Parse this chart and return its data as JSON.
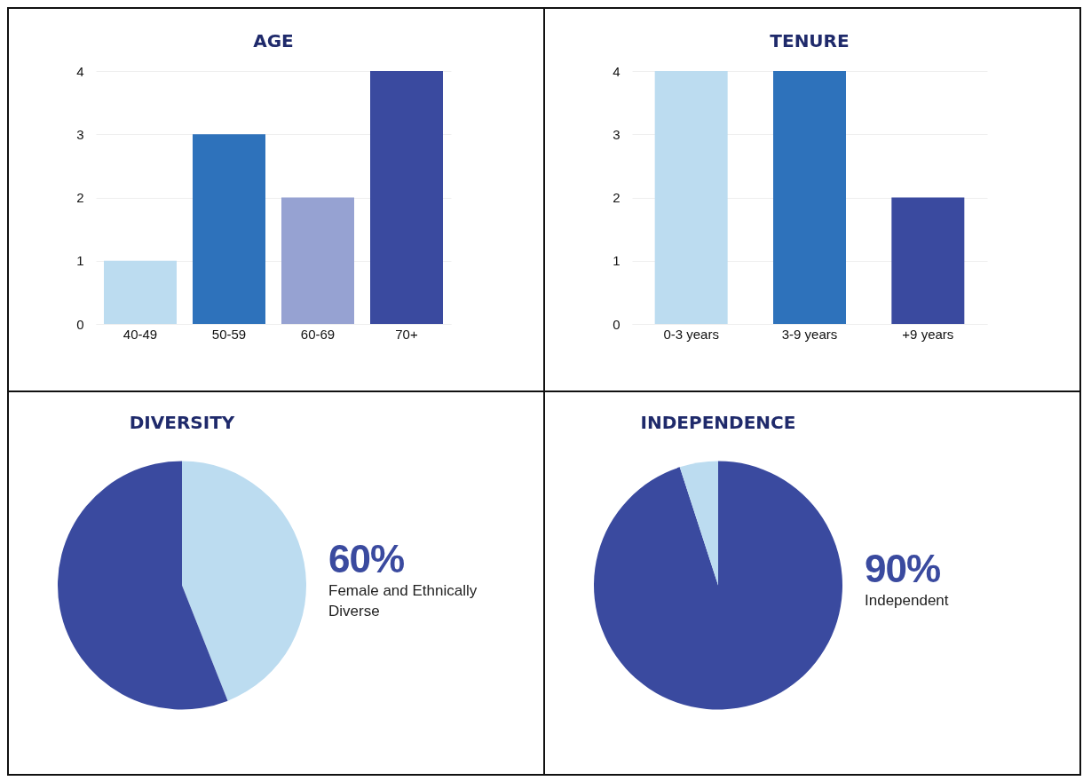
{
  "chart_data": [
    {
      "type": "bar",
      "title": "AGE",
      "categories": [
        "40-49",
        "50-59",
        "60-69",
        "70+"
      ],
      "values": [
        1,
        3,
        2,
        4
      ],
      "colors": [
        "#bcdcf0",
        "#2e72bb",
        "#96a2d2",
        "#3a4a9f"
      ],
      "ylim": [
        0,
        4
      ],
      "yticks": [
        0,
        1,
        2,
        3,
        4
      ],
      "grid": "y"
    },
    {
      "type": "bar",
      "title": "TENURE",
      "categories": [
        "0-3 years",
        "3-9 years",
        "+9 years"
      ],
      "values": [
        4,
        4,
        2
      ],
      "colors": [
        "#bcdcf0",
        "#2e72bb",
        "#3a4a9f"
      ],
      "ylim": [
        0,
        4
      ],
      "yticks": [
        0,
        1,
        2,
        3,
        4
      ],
      "grid": "y"
    },
    {
      "type": "pie",
      "title": "DIVERSITY",
      "categories": [
        null,
        null
      ],
      "values": [
        44,
        56
      ],
      "colors": [
        "#bcdcf0",
        "#3a4a9f"
      ],
      "annotations": [
        "60%",
        "Female and Ethnically Diverse"
      ]
    },
    {
      "type": "pie",
      "title": "INDEPENDENCE",
      "categories": [
        null,
        null
      ],
      "values": [
        95,
        5
      ],
      "colors": [
        "#3a4a9f",
        "#bcdcf0"
      ],
      "annotations": [
        "90%",
        "Independent"
      ]
    }
  ]
}
